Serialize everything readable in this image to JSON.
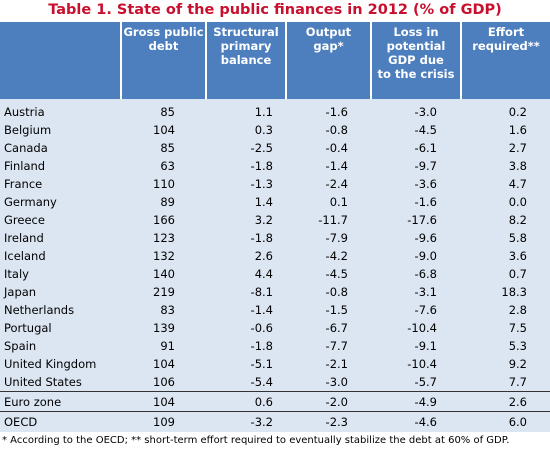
{
  "header": {
    "title": "Table 1. State of the public finances in 2012 (% of GDP)"
  },
  "table": {
    "columns": [
      [
        "Gross public",
        "debt"
      ],
      [
        "Structural",
        "primary",
        "balance"
      ],
      [
        "Output",
        "gap*"
      ],
      [
        "Loss in",
        "potential",
        "GDP due",
        "to the crisis"
      ],
      [
        "Effort",
        "required**"
      ]
    ],
    "rows": [
      [
        "Austria",
        "85",
        "1.1",
        "-1.6",
        "-3.0",
        "0.2"
      ],
      [
        "Belgium",
        "104",
        "0.3",
        "-0.8",
        "-4.5",
        "1.6"
      ],
      [
        "Canada",
        "85",
        "-2.5",
        "-0.4",
        "-6.1",
        "2.7"
      ],
      [
        "Finland",
        "63",
        "-1.8",
        "-1.4",
        "-9.7",
        "3.8"
      ],
      [
        "France",
        "110",
        "-1.3",
        "-2.4",
        "-3.6",
        "4.7"
      ],
      [
        "Germany",
        "89",
        "1.4",
        "0.1",
        "-1.6",
        "0.0"
      ],
      [
        "Greece",
        "166",
        "3.2",
        "-11.7",
        "-17.6",
        "8.2"
      ],
      [
        "Ireland",
        "123",
        "-1.8",
        "-7.9",
        "-9.6",
        "5.8"
      ],
      [
        "Iceland",
        "132",
        "2.6",
        "-4.2",
        "-9.0",
        "3.6"
      ],
      [
        "Italy",
        "140",
        "4.4",
        "-4.5",
        "-6.8",
        "0.7"
      ],
      [
        "Japan",
        "219",
        "-8.1",
        "-0.8",
        "-3.1",
        "18.3"
      ],
      [
        "Netherlands",
        "83",
        "-1.4",
        "-1.5",
        "-7.6",
        "2.8"
      ],
      [
        "Portugal",
        "139",
        "-0.6",
        "-6.7",
        "-10.4",
        "7.5"
      ],
      [
        "Spain",
        "91",
        "-1.8",
        "-7.7",
        "-9.1",
        "5.3"
      ],
      [
        "United Kingdom",
        "104",
        "-5.1",
        "-2.1",
        "-10.4",
        "9.2"
      ],
      [
        "United States",
        "106",
        "-5.4",
        "-3.0",
        "-5.7",
        "7.7"
      ],
      [
        "Euro zone",
        "104",
        "0.6",
        "-2.0",
        "-4.9",
        "2.6"
      ],
      [
        "OECD",
        "109",
        "-3.2",
        "-2.3",
        "-4.6",
        "6.0"
      ]
    ]
  },
  "footnote": "* According to the OECD; ** short-term effort required to eventually stabilize the debt at 60% of GDP."
}
